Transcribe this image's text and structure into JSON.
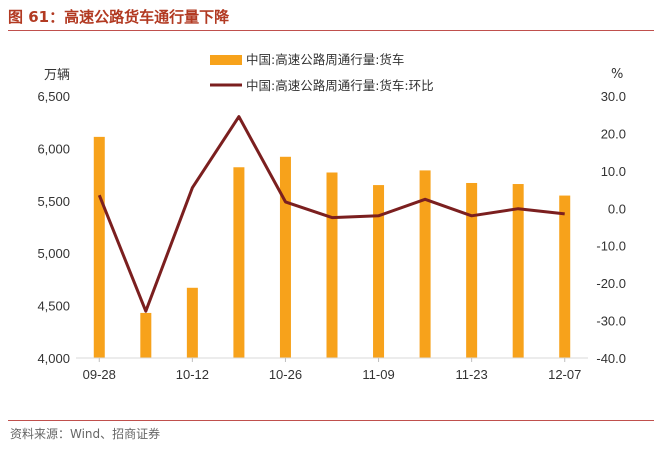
{
  "figure": {
    "title": "图 61：高速公路货车通行量下降",
    "source": "资料来源：Wind、招商证券"
  },
  "colors": {
    "bar": "#f7a21b",
    "line": "#7b1f1f",
    "title": "#b23a22",
    "rule": "#c0504d"
  },
  "chart_data": {
    "type": "bar+line",
    "x_ticks": [
      "09-28",
      "10-12",
      "10-26",
      "11-09",
      "11-23",
      "12-07"
    ],
    "categories_count": 11,
    "series": [
      {
        "name": "中国:高速公路周通行量:货车",
        "kind": "bar",
        "axis": "left",
        "values": [
          6110,
          4430,
          4670,
          5820,
          5920,
          5770,
          5650,
          5790,
          5670,
          5660,
          5550
        ]
      },
      {
        "name": "中国:高速公路周通行量:货车:环比",
        "kind": "line",
        "axis": "right",
        "values": [
          3.5,
          -27.5,
          5.5,
          24.5,
          1.7,
          -2.5,
          -2.0,
          2.4,
          -2.0,
          -0.1,
          -1.5
        ]
      }
    ],
    "y_left": {
      "unit": "万辆",
      "min": 4000,
      "max": 6500,
      "ticks": [
        "4,000",
        "4,500",
        "5,000",
        "5,500",
        "6,000",
        "6,500"
      ]
    },
    "y_right": {
      "unit": "%",
      "min": -40,
      "max": 30,
      "ticks": [
        "-40.0",
        "-30.0",
        "-20.0",
        "-10.0",
        "0.0",
        "10.0",
        "20.0",
        "30.0"
      ]
    },
    "legend_position": "top-center",
    "grid": false
  }
}
